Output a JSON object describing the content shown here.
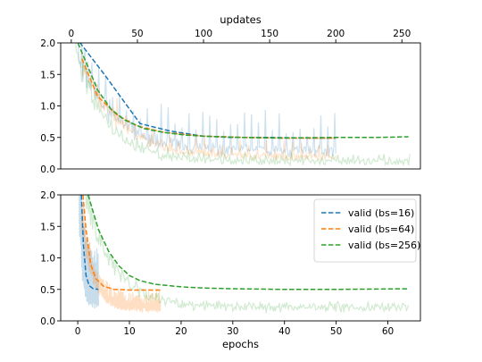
{
  "chart_data": [
    {
      "type": "line",
      "id": "top",
      "xlabel": "updates",
      "xlabel_position": "top",
      "ylabel": "",
      "xlim": [
        -8,
        264
      ],
      "ylim": [
        0,
        2.0
      ],
      "xticks": [
        0,
        50,
        100,
        150,
        200,
        250
      ],
      "yticks": [
        0.0,
        0.5,
        1.0,
        1.5,
        2.0
      ],
      "legend": null,
      "series": [
        {
          "key": "valid16",
          "kind": "valid",
          "style": "dashed",
          "color": "#1f77b4",
          "x": [
            3,
            25,
            52,
            75,
            100,
            120,
            150,
            180,
            200
          ],
          "y": [
            2.1,
            1.5,
            0.72,
            0.6,
            0.52,
            0.5,
            0.5,
            0.49,
            0.49
          ]
        },
        {
          "key": "valid64",
          "kind": "valid",
          "style": "dashed",
          "color": "#ff7f0e",
          "x": [
            8,
            20,
            35,
            50,
            70,
            100,
            130,
            160,
            180,
            200
          ],
          "y": [
            1.75,
            1.15,
            0.85,
            0.68,
            0.58,
            0.52,
            0.5,
            0.49,
            0.49,
            0.49
          ]
        },
        {
          "key": "valid256",
          "kind": "valid",
          "style": "dashed",
          "color": "#2ca02c",
          "x": [
            5,
            10,
            20,
            30,
            40,
            55,
            70,
            85,
            100,
            130,
            160,
            200,
            230,
            255
          ],
          "y": [
            2.0,
            1.75,
            1.25,
            0.95,
            0.78,
            0.64,
            0.58,
            0.54,
            0.52,
            0.5,
            0.49,
            0.5,
            0.5,
            0.51
          ]
        },
        {
          "key": "train16",
          "kind": "train",
          "color": "#1f77b4",
          "alpha": 0.22,
          "x0": 5,
          "x1": 200,
          "base_start": 1.9,
          "base_end": 0.28,
          "decay": 25,
          "amp": 0.25,
          "spike_every": 7,
          "spike": 0.45
        },
        {
          "key": "train64",
          "kind": "train",
          "color": "#ff7f0e",
          "alpha": 0.22,
          "x0": 8,
          "x1": 200,
          "base_start": 1.7,
          "base_end": 0.18,
          "decay": 28,
          "amp": 0.18,
          "spike_every": 9,
          "spike": 0.2
        },
        {
          "key": "train256",
          "kind": "train",
          "color": "#2ca02c",
          "alpha": 0.22,
          "x0": 3,
          "x1": 256,
          "base_start": 2.0,
          "base_end": 0.1,
          "decay": 22,
          "amp": 0.2,
          "spike_every": 4,
          "spike": 0.1
        }
      ]
    },
    {
      "type": "line",
      "id": "bottom",
      "xlabel": "epochs",
      "xlabel_position": "bottom",
      "ylabel": "",
      "xlim": [
        -3.3,
        66.3
      ],
      "ylim": [
        0,
        2.0
      ],
      "xticks": [
        0,
        10,
        20,
        30,
        40,
        50,
        60
      ],
      "yticks": [
        0.0,
        0.5,
        1.0,
        1.5,
        2.0
      ],
      "legend": {
        "position": "top-right",
        "entries": [
          "valid (bs=16)",
          "valid (bs=64)",
          "valid (bs=256)"
        ]
      },
      "series": [
        {
          "key": "valid16",
          "kind": "valid",
          "style": "dashed",
          "color": "#1f77b4",
          "x": [
            0.7,
            1.1,
            1.6,
            2.2,
            3.0,
            4.0
          ],
          "y": [
            2.0,
            1.2,
            0.72,
            0.56,
            0.51,
            0.5
          ]
        },
        {
          "key": "valid64",
          "kind": "valid",
          "style": "dashed",
          "color": "#ff7f0e",
          "x": [
            1.0,
            1.6,
            2.5,
            3.5,
            5.0,
            7.0,
            10.0,
            13.0,
            16.0
          ],
          "y": [
            2.0,
            1.45,
            0.9,
            0.67,
            0.55,
            0.5,
            0.49,
            0.49,
            0.49
          ]
        },
        {
          "key": "valid256",
          "kind": "valid",
          "style": "dashed",
          "color": "#2ca02c",
          "x": [
            2.0,
            4.0,
            6.0,
            8.0,
            10.0,
            12.0,
            15.0,
            20.0,
            25.0,
            30.0,
            40.0,
            50.0,
            64.0
          ],
          "y": [
            2.0,
            1.45,
            1.1,
            0.87,
            0.72,
            0.64,
            0.58,
            0.54,
            0.52,
            0.51,
            0.5,
            0.5,
            0.51
          ]
        },
        {
          "key": "train16",
          "kind": "train",
          "color": "#1f77b4",
          "alpha": 0.25,
          "x0": 0.3,
          "x1": 4.0,
          "base_start": 2.0,
          "base_end": 0.32,
          "decay": 0.6,
          "amp": 0.35,
          "spike_every": 3,
          "spike": 0.6
        },
        {
          "key": "train64",
          "kind": "train",
          "color": "#ff7f0e",
          "alpha": 0.25,
          "x0": 0.8,
          "x1": 16.0,
          "base_start": 1.6,
          "base_end": 0.18,
          "decay": 2.2,
          "amp": 0.18,
          "spike_every": 4,
          "spike": 0.2
        },
        {
          "key": "train256",
          "kind": "train",
          "color": "#2ca02c",
          "alpha": 0.22,
          "x0": 1.5,
          "x1": 64.0,
          "base_start": 1.9,
          "base_end": 0.1,
          "decay": 5.5,
          "amp": 0.2,
          "spike_every": 1,
          "spike": 0.12
        }
      ]
    }
  ]
}
